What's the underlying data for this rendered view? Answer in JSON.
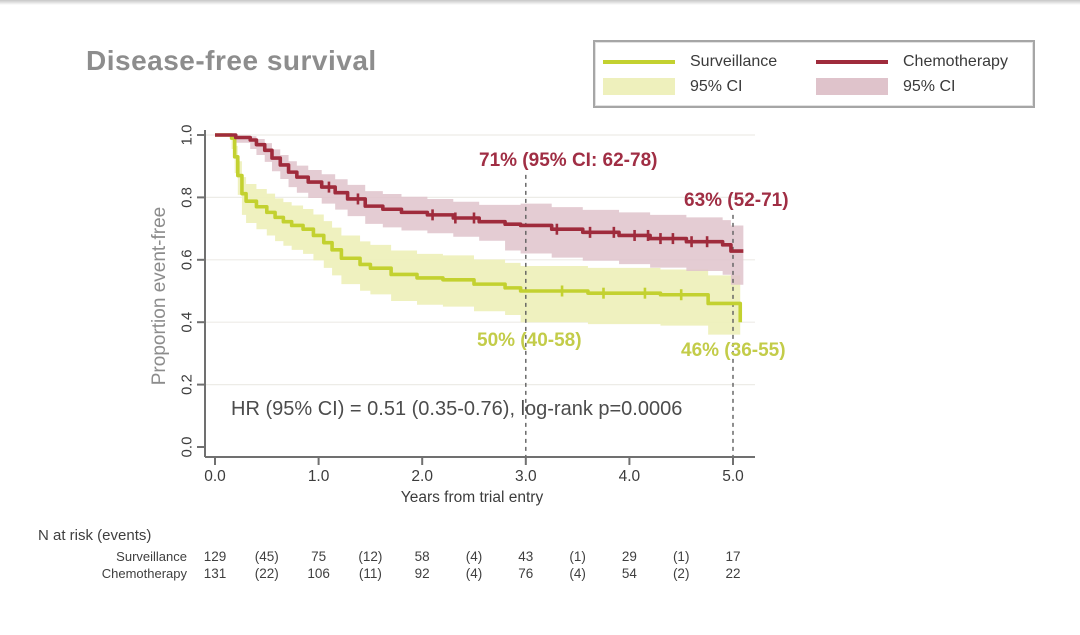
{
  "page": {
    "title": "Disease-free survival"
  },
  "colors": {
    "title_text": "#8d8d8d",
    "surveillance_line": "#c3d130",
    "surveillance_band": "#eef0bc",
    "chemotherapy_line": "#9f2b3c",
    "chemotherapy_band": "#dfc3cb",
    "surveillance_text": "#c3cc49",
    "chemotherapy_text": "#a02e44",
    "axis": "#707070",
    "tick_text": "#3c3c3c",
    "grid": "#edece7",
    "dashed_line": "#5f5f5f",
    "stat_text": "#4c4c4c",
    "risk_text": "#3f3f3f"
  },
  "legend": {
    "items": [
      {
        "label": "Surveillance",
        "swatch": "line",
        "color_key": "surveillance_line"
      },
      {
        "label": "95% CI",
        "swatch": "band",
        "color_key": "surveillance_band"
      },
      {
        "label": "Chemotherapy",
        "swatch": "line",
        "color_key": "chemotherapy_line"
      },
      {
        "label": "95% CI",
        "swatch": "band",
        "color_key": "chemotherapy_band"
      }
    ]
  },
  "chart_data": {
    "type": "line",
    "subtype": "kaplan-meier-step",
    "title": "Disease-free survival",
    "xlabel": "Years from trial entry",
    "ylabel": "Proportion event-free",
    "xlim": [
      0,
      5.2
    ],
    "ylim": [
      0,
      1.0
    ],
    "grid": "horizontal-faint",
    "legend_position": "top-right",
    "xticks": {
      "values": [
        0,
        1,
        2,
        3,
        4,
        5
      ],
      "labels": [
        "0.0",
        "1.0",
        "2.0",
        "3.0",
        "4.0",
        "5.0"
      ]
    },
    "yticks": {
      "values": [
        0,
        0.2,
        0.4,
        0.6,
        0.8,
        1.0
      ],
      "labels": [
        "0.0",
        "0.2",
        "0.4",
        "0.6",
        "0.8",
        "1.0"
      ]
    },
    "dashed_vlines": [
      {
        "x": 3.0,
        "top_value": 0.872
      },
      {
        "x": 5.0,
        "top_value": 0.744
      }
    ],
    "series": [
      {
        "name": "Surveillance",
        "color_key": "surveillance_line",
        "band_key": "surveillance_band",
        "points": [
          [
            0.0,
            1.0,
            1.0,
            1.0
          ],
          [
            0.16,
            0.99,
            0.955,
            1.0
          ],
          [
            0.19,
            0.93,
            0.878,
            0.965
          ],
          [
            0.22,
            0.87,
            0.808,
            0.916
          ],
          [
            0.26,
            0.812,
            0.744,
            0.865
          ],
          [
            0.3,
            0.788,
            0.718,
            0.843
          ],
          [
            0.4,
            0.77,
            0.698,
            0.827
          ],
          [
            0.5,
            0.752,
            0.678,
            0.812
          ],
          [
            0.58,
            0.736,
            0.66,
            0.797
          ],
          [
            0.66,
            0.722,
            0.645,
            0.785
          ],
          [
            0.74,
            0.71,
            0.632,
            0.774
          ],
          [
            0.85,
            0.698,
            0.619,
            0.763
          ],
          [
            0.95,
            0.678,
            0.598,
            0.745
          ],
          [
            1.05,
            0.655,
            0.574,
            0.724
          ],
          [
            1.13,
            0.632,
            0.55,
            0.703
          ],
          [
            1.22,
            0.605,
            0.522,
            0.678
          ],
          [
            1.4,
            0.585,
            0.501,
            0.659
          ],
          [
            1.5,
            0.573,
            0.489,
            0.648
          ],
          [
            1.7,
            0.553,
            0.468,
            0.63
          ],
          [
            1.95,
            0.542,
            0.456,
            0.619
          ],
          [
            2.2,
            0.536,
            0.45,
            0.614
          ],
          [
            2.5,
            0.522,
            0.435,
            0.601
          ],
          [
            2.8,
            0.51,
            0.423,
            0.59
          ],
          [
            2.95,
            0.5,
            0.4,
            0.58
          ],
          [
            3.6,
            0.493,
            0.394,
            0.574
          ],
          [
            4.3,
            0.488,
            0.389,
            0.569
          ],
          [
            4.76,
            0.46,
            0.36,
            0.55
          ],
          [
            5.07,
            0.4,
            0.3,
            0.5
          ]
        ],
        "censor_times": [
          3.35,
          3.75,
          4.15,
          4.5
        ]
      },
      {
        "name": "Chemotherapy",
        "color_key": "chemotherapy_line",
        "band_key": "chemotherapy_band",
        "points": [
          [
            0.0,
            1.0,
            1.0,
            1.0
          ],
          [
            0.2,
            0.992,
            0.975,
            0.998
          ],
          [
            0.34,
            0.984,
            0.955,
            0.996
          ],
          [
            0.4,
            0.969,
            0.936,
            0.987
          ],
          [
            0.48,
            0.951,
            0.914,
            0.974
          ],
          [
            0.55,
            0.926,
            0.884,
            0.954
          ],
          [
            0.63,
            0.904,
            0.859,
            0.936
          ],
          [
            0.71,
            0.881,
            0.833,
            0.916
          ],
          [
            0.79,
            0.865,
            0.815,
            0.902
          ],
          [
            0.9,
            0.849,
            0.798,
            0.888
          ],
          [
            1.03,
            0.833,
            0.78,
            0.874
          ],
          [
            1.16,
            0.815,
            0.761,
            0.858
          ],
          [
            1.28,
            0.795,
            0.74,
            0.84
          ],
          [
            1.45,
            0.772,
            0.715,
            0.82
          ],
          [
            1.62,
            0.762,
            0.704,
            0.811
          ],
          [
            1.8,
            0.752,
            0.694,
            0.802
          ],
          [
            2.05,
            0.744,
            0.685,
            0.795
          ],
          [
            2.3,
            0.734,
            0.674,
            0.786
          ],
          [
            2.55,
            0.722,
            0.661,
            0.776
          ],
          [
            2.8,
            0.714,
            0.63,
            0.776
          ],
          [
            2.95,
            0.71,
            0.62,
            0.78
          ],
          [
            3.25,
            0.698,
            0.607,
            0.769
          ],
          [
            3.55,
            0.688,
            0.597,
            0.76
          ],
          [
            3.9,
            0.678,
            0.586,
            0.752
          ],
          [
            4.2,
            0.668,
            0.575,
            0.744
          ],
          [
            4.55,
            0.658,
            0.564,
            0.736
          ],
          [
            4.9,
            0.648,
            0.552,
            0.727
          ],
          [
            4.98,
            0.628,
            0.52,
            0.71
          ],
          [
            5.1,
            0.628,
            0.52,
            0.71
          ]
        ],
        "censor_times": [
          1.1,
          1.38,
          2.1,
          2.32,
          2.5,
          3.3,
          3.62,
          3.85,
          4.05,
          4.18,
          4.3,
          4.42,
          4.6,
          4.75
        ]
      }
    ]
  },
  "annotations": {
    "chemo_3yr": {
      "text": "71% (95% CI: 62-78)"
    },
    "chemo_5yr": {
      "text": "63% (52-71)"
    },
    "surv_3yr": {
      "text": "50% (40-58)"
    },
    "surv_5yr": {
      "text": "46% (36-55)"
    },
    "hr_stat": {
      "text": "HR (95% CI) = 0.51 (0.35-0.76), log-rank p=0.0006"
    }
  },
  "risk_table": {
    "title": "N at risk (events)",
    "rows": [
      {
        "label": "Surveillance",
        "values": [
          "129",
          "(45)",
          "75",
          "(12)",
          "58",
          "(4)",
          "43",
          "(1)",
          "29",
          "(1)",
          "17"
        ]
      },
      {
        "label": "Chemotherapy",
        "values": [
          "131",
          "(22)",
          "106",
          "(11)",
          "92",
          "(4)",
          "76",
          "(4)",
          "54",
          "(2)",
          "22"
        ]
      }
    ]
  }
}
